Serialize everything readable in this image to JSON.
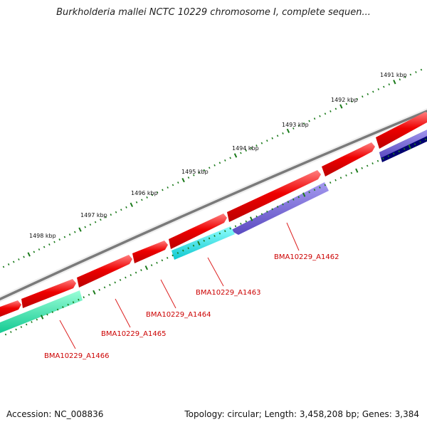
{
  "title": "Burkholderia mallei NCTC 10229 chromosome I, complete sequen...",
  "footer": {
    "accession": "Accession: NC_008836",
    "topology": "Topology: circular; Length: 3,458,208 bp; Genes: 3,384"
  },
  "colors": {
    "backbone": "#777777",
    "forward_gene": "#ee0000",
    "tick": "#1a7a1a",
    "label": "#cc0000",
    "leader": "#dd2222"
  },
  "scale_ticks": [
    {
      "label": "1491 kbp",
      "kbp": 1491
    },
    {
      "label": "1492 kbp",
      "kbp": 1492
    },
    {
      "label": "1493 kbp",
      "kbp": 1493
    },
    {
      "label": "1494 kbp",
      "kbp": 1494
    },
    {
      "label": "1495 kbp",
      "kbp": 1495
    },
    {
      "label": "1496 kbp",
      "kbp": 1496
    },
    {
      "label": "1497 kbp",
      "kbp": 1497
    },
    {
      "label": "1498 kbp",
      "kbp": 1498
    }
  ],
  "genes": [
    {
      "name": "BMA10229_A1462",
      "labeled": true,
      "strand": "reverse",
      "color": "#7a6ad8"
    },
    {
      "name": "BMA10229_A1463",
      "labeled": true,
      "strand": "reverse",
      "color": "#22e0e0"
    },
    {
      "name": "BMA10229_A1464",
      "labeled": true,
      "strand": "forward",
      "color": "#ee0000"
    },
    {
      "name": "BMA10229_A1465",
      "labeled": true,
      "strand": "forward",
      "color": "#ee0000"
    },
    {
      "name": "BMA10229_A1466",
      "labeled": true,
      "strand": "reverse",
      "color": "#22e0a0"
    }
  ]
}
